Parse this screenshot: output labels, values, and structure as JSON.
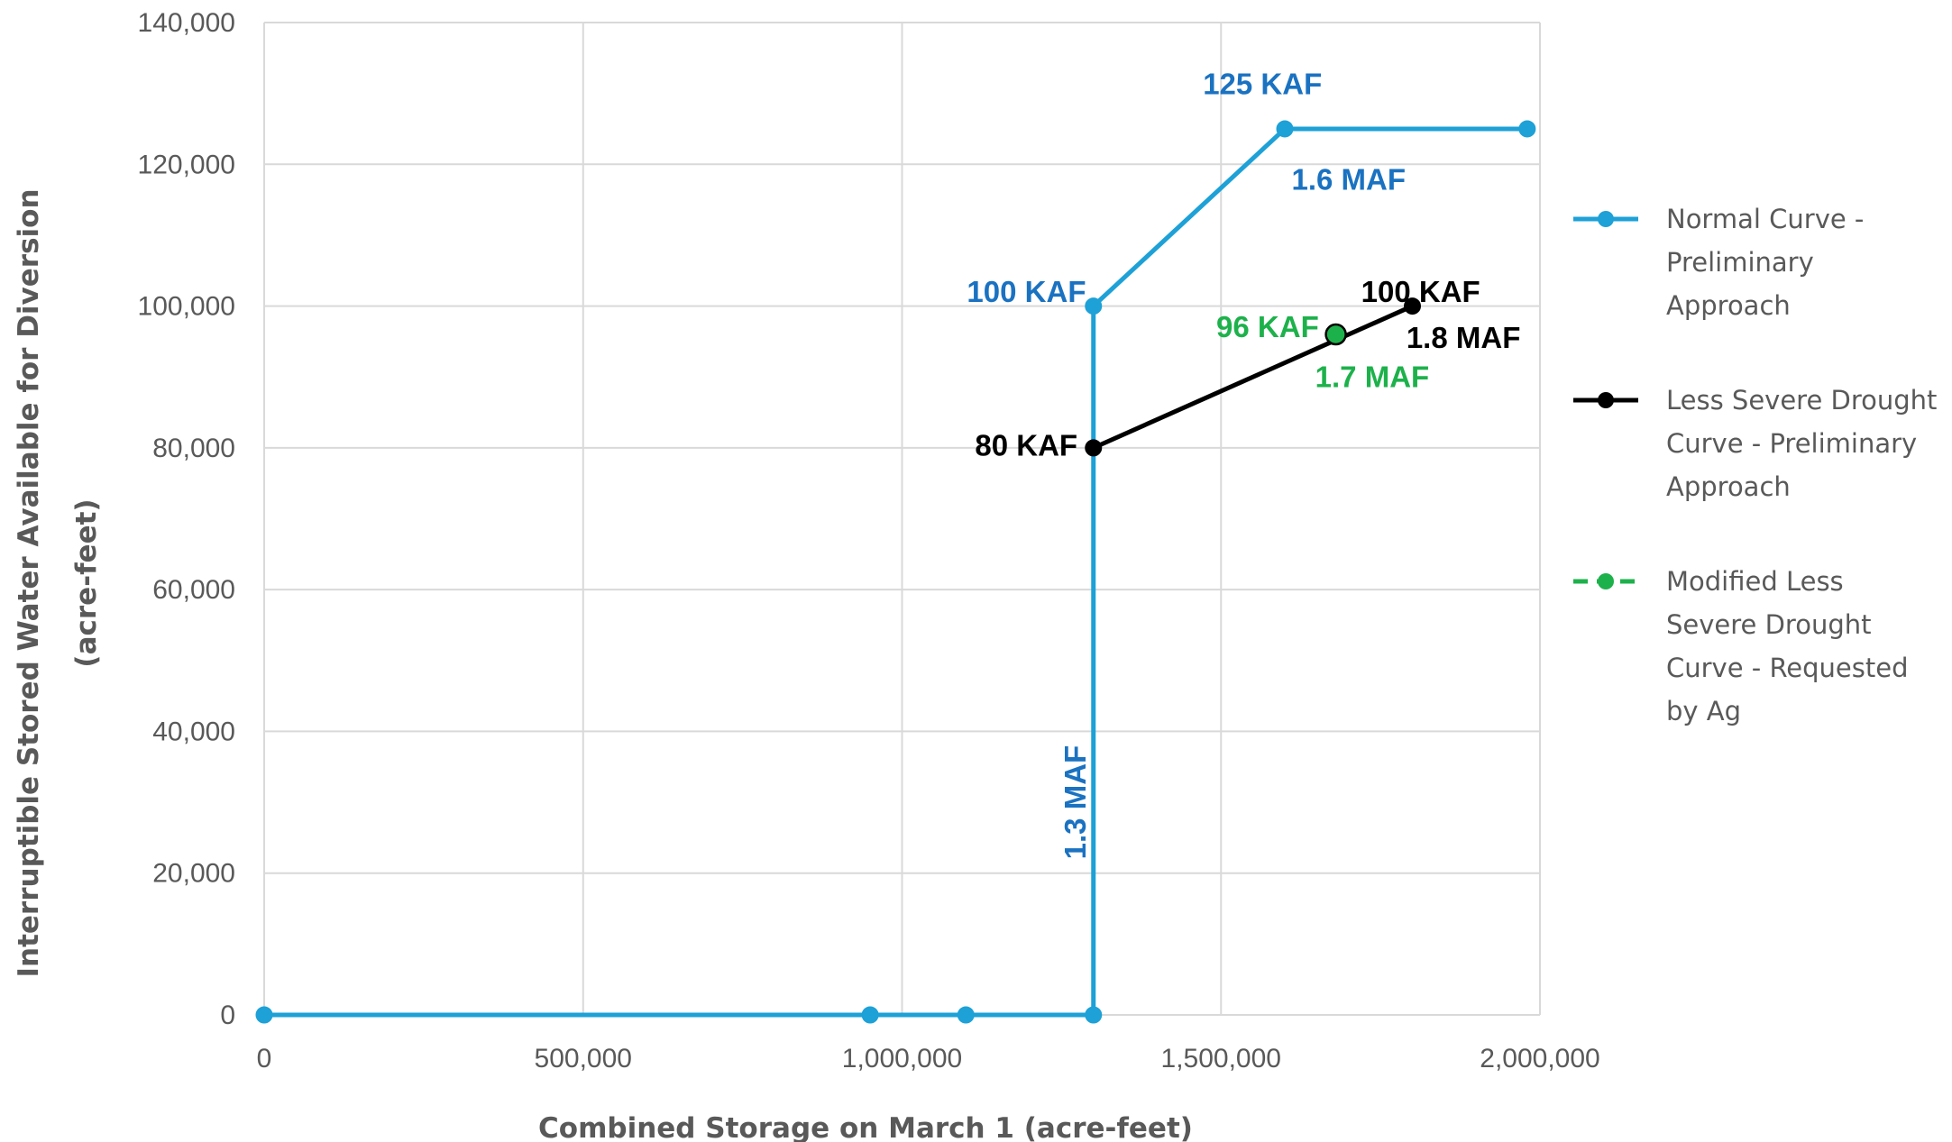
{
  "chart_data": {
    "type": "line",
    "xlabel": "Combined Storage on March 1 (acre-feet)",
    "ylabel_lines": [
      "Interruptible Stored Water Available for Diversion",
      "(acre-feet)"
    ],
    "xlim": [
      0,
      2000000
    ],
    "ylim": [
      0,
      140000
    ],
    "x_ticks": [
      0,
      500000,
      1000000,
      1500000,
      2000000
    ],
    "x_tick_labels": [
      "0",
      "500,000",
      "1,000,000",
      "1,500,000",
      "2,000,000"
    ],
    "y_ticks": [
      0,
      20000,
      40000,
      60000,
      80000,
      100000,
      120000,
      140000
    ],
    "y_tick_labels": [
      "0",
      "20,000",
      "40,000",
      "60,000",
      "80,000",
      "100,000",
      "120,000",
      "140,000"
    ],
    "grid": true,
    "legend_position": "right",
    "series": [
      {
        "name": "Normal Curve - Preliminary Approach",
        "legend_lines": [
          "Normal Curve -",
          "Preliminary",
          "Approach"
        ],
        "color": "#1da1d7",
        "dashed": false,
        "x": [
          0,
          950000,
          1100000,
          1300000,
          1300000,
          1600000,
          1980000
        ],
        "y": [
          0,
          0,
          0,
          0,
          100000,
          125000,
          125000
        ]
      },
      {
        "name": "Less Severe Drought Curve - Preliminary Approach",
        "legend_lines": [
          "Less Severe Drought",
          "Curve - Preliminary",
          "Approach"
        ],
        "color": "#000000",
        "dashed": false,
        "x": [
          1300000,
          1800000
        ],
        "y": [
          80000,
          100000
        ]
      },
      {
        "name": "Modified Less Severe Drought Curve - Requested by Ag",
        "legend_lines": [
          "Modified Less",
          "Severe Drought",
          "Curve - Requested",
          "by Ag"
        ],
        "color": "#1db14b",
        "dashed": true,
        "x": [
          1680000
        ],
        "y": [
          96000
        ]
      }
    ],
    "annotations": [
      {
        "text": "125 KAF",
        "color": "#1a72c1",
        "x": 1565000,
        "y": 131000,
        "anchor": "middle",
        "rotate": false
      },
      {
        "text": "1.6 MAF",
        "color": "#1a72c1",
        "x": 1700000,
        "y": 117500,
        "anchor": "middle",
        "rotate": false
      },
      {
        "text": "100 KAF",
        "color": "#1a72c1",
        "x": 1195000,
        "y": 101700,
        "anchor": "middle",
        "rotate": false
      },
      {
        "text": "100 KAF",
        "color": "#000000",
        "x": 1813000,
        "y": 101700,
        "anchor": "middle",
        "rotate": false
      },
      {
        "text": "1.8 MAF",
        "color": "#000000",
        "x": 1880000,
        "y": 95200,
        "anchor": "middle",
        "rotate": false
      },
      {
        "text": "96 KAF",
        "color": "#1db14b",
        "x": 1573000,
        "y": 96700,
        "anchor": "middle",
        "rotate": false
      },
      {
        "text": "1.7 MAF",
        "color": "#1db14b",
        "x": 1737000,
        "y": 89700,
        "anchor": "middle",
        "rotate": false
      },
      {
        "text": "80 KAF",
        "color": "#000000",
        "x": 1275000,
        "y": 80000,
        "anchor": "end",
        "rotate": false
      },
      {
        "text": "1.3 MAF",
        "color": "#1a72c1",
        "x": 1275000,
        "y": 30000,
        "anchor": "middle",
        "rotate": true
      }
    ]
  }
}
